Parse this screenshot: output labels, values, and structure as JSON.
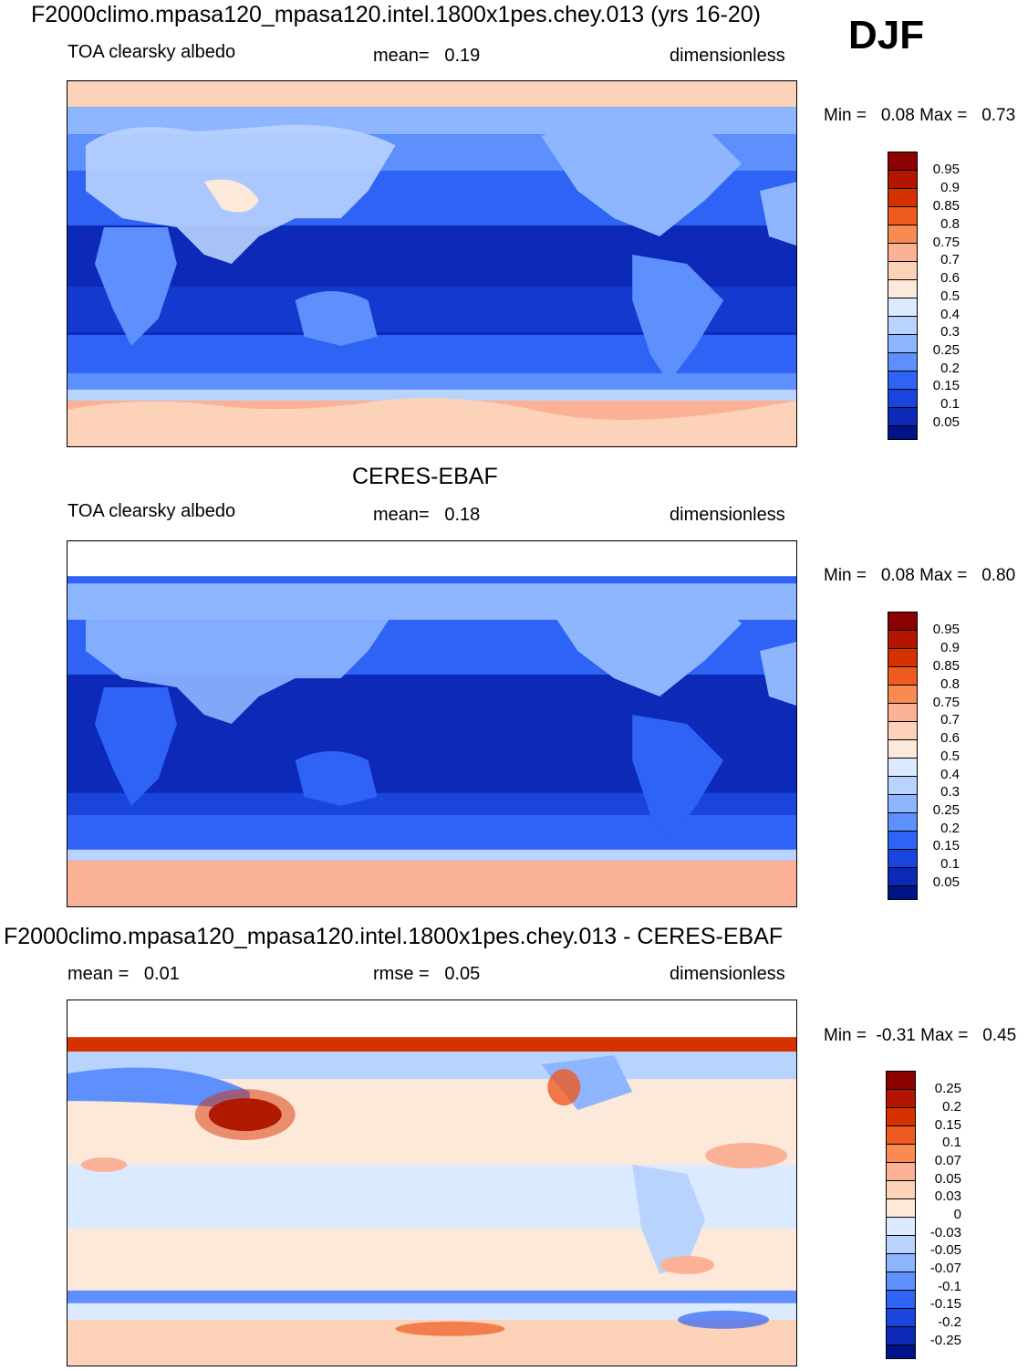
{
  "season": "DJF",
  "panels": [
    {
      "title": "F2000climo.mpasa120_mpasa120.intel.1800x1pes.chey.013 (yrs 16-20)",
      "left_label": "TOA clearsky albedo",
      "center_label": "mean=   0.19",
      "right_label": "dimensionless",
      "minmax": "Min =   0.08 Max =   0.73",
      "colorbar_labels": [
        "0.95",
        "0.9",
        "0.85",
        "0.8",
        "0.75",
        "0.7",
        "0.6",
        "0.5",
        "0.4",
        "0.3",
        "0.25",
        "0.2",
        "0.15",
        "0.1",
        "0.05"
      ],
      "colorbar_colors": [
        "#8b0000",
        "#b31500",
        "#d63200",
        "#ef5a20",
        "#f98a52",
        "#fbb195",
        "#fcd2b8",
        "#fde9da",
        "#dbeaff",
        "#b9d3ff",
        "#8db6ff",
        "#5d8ffd",
        "#2e63f5",
        "#1a45dd",
        "#0c29b8",
        "#001488"
      ]
    },
    {
      "title": "CERES-EBAF",
      "left_label": "TOA clearsky albedo",
      "center_label": "mean=   0.18",
      "right_label": "dimensionless",
      "minmax": "Min =   0.08 Max =   0.80",
      "colorbar_labels": [
        "0.95",
        "0.9",
        "0.85",
        "0.8",
        "0.75",
        "0.7",
        "0.6",
        "0.5",
        "0.4",
        "0.3",
        "0.25",
        "0.2",
        "0.15",
        "0.1",
        "0.05"
      ],
      "colorbar_colors": [
        "#8b0000",
        "#b31500",
        "#d63200",
        "#ef5a20",
        "#f98a52",
        "#fbb195",
        "#fcd2b8",
        "#fde9da",
        "#dbeaff",
        "#b9d3ff",
        "#8db6ff",
        "#5d8ffd",
        "#2e63f5",
        "#1a45dd",
        "#0c29b8",
        "#001488"
      ]
    },
    {
      "title": "F2000climo.mpasa120_mpasa120.intel.1800x1pes.chey.013 - CERES-EBAF",
      "left_label": "mean =   0.01",
      "center_label": "rmse =   0.05",
      "right_label": "dimensionless",
      "minmax": "Min =  -0.31 Max =   0.45",
      "colorbar_labels": [
        "0.25",
        "0.2",
        "0.15",
        "0.1",
        "0.07",
        "0.05",
        "0.03",
        "0",
        "-0.03",
        "-0.05",
        "-0.07",
        "-0.1",
        "-0.15",
        "-0.2",
        "-0.25"
      ],
      "colorbar_colors": [
        "#8b0000",
        "#b31500",
        "#d63200",
        "#ef5a20",
        "#f98a52",
        "#fbb195",
        "#fcd2b8",
        "#fde9da",
        "#dbeaff",
        "#b9d3ff",
        "#8db6ff",
        "#5d8ffd",
        "#2e63f5",
        "#1a45dd",
        "#0c29b8",
        "#001488"
      ]
    }
  ]
}
